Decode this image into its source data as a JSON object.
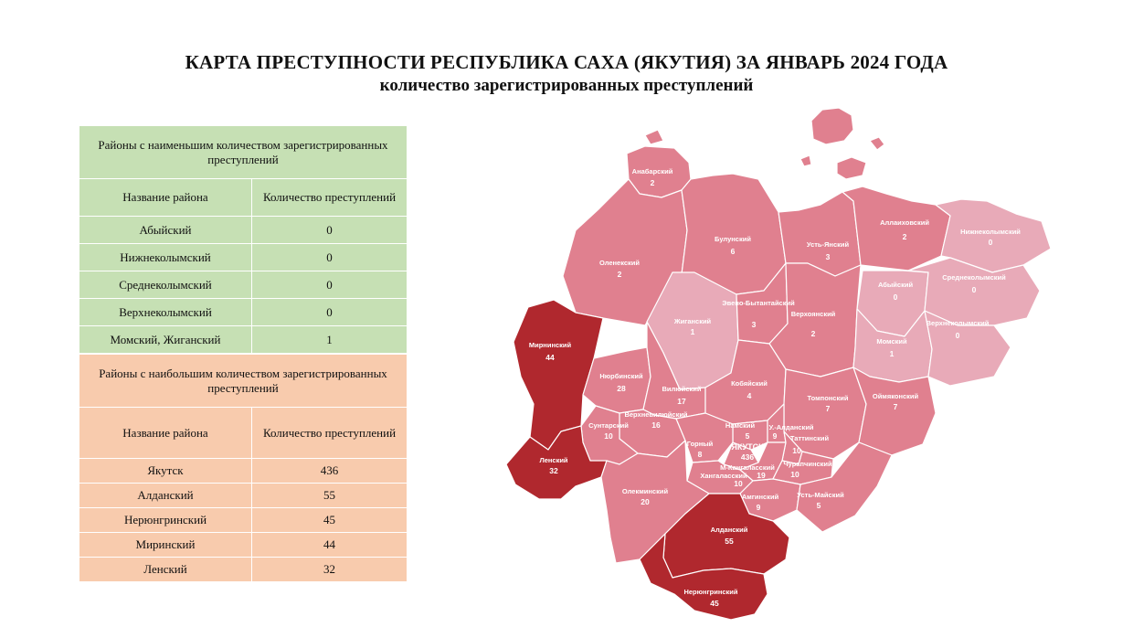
{
  "title": "КАРТА ПРЕСТУПНОСТИ РЕСПУБЛИКА САХА  (ЯКУТИЯ) ЗА ЯНВАРЬ 2024 ГОДА",
  "subtitle": "количество зарегистрированных преступлений",
  "least_table": {
    "heading": "Районы с наименьшим количеством зарегистрированных преступлений",
    "col_name": "Название района",
    "col_count": "Количество преступлений",
    "rows": [
      {
        "name": "Абыйский",
        "count": "0"
      },
      {
        "name": "Нижнеколымский",
        "count": "0"
      },
      {
        "name": "Среднеколымский",
        "count": "0"
      },
      {
        "name": "Верхнеколымский",
        "count": "0"
      },
      {
        "name": "Момский, Жиганский",
        "count": "1"
      }
    ],
    "color": "#c6e0b4"
  },
  "most_table": {
    "heading": "Районы с наибольшим количеством зарегистрированных преступлений",
    "col_name": "Название района",
    "col_count": "Количество преступлений",
    "rows": [
      {
        "name": "Якутск",
        "count": "436"
      },
      {
        "name": "Алданский",
        "count": "55"
      },
      {
        "name": "Нерюнгринский",
        "count": "45"
      },
      {
        "name": "Миринский",
        "count": "44"
      },
      {
        "name": "Ленский",
        "count": "32"
      }
    ],
    "color": "#f8cbad"
  },
  "map": {
    "colors": {
      "low": "#e8aab8",
      "mid": "#e0808f",
      "high": "#b0282e",
      "border": "#ffffff"
    },
    "districts": {
      "anabar": {
        "name": "Анабарский",
        "value": "2"
      },
      "olenek": {
        "name": "Оленекский",
        "value": "2"
      },
      "bulun": {
        "name": "Булунский",
        "value": "6"
      },
      "ustyan": {
        "name": "Усть-Янский",
        "value": "3"
      },
      "allaikh": {
        "name": "Аллаиховский",
        "value": "2"
      },
      "nizhnekol": {
        "name": "Нижнеколымский",
        "value": "0"
      },
      "abyi": {
        "name": "Абыйский",
        "value": "0"
      },
      "srednekol": {
        "name": "Среднеколымский",
        "value": "0"
      },
      "zhigan": {
        "name": "Жиганский",
        "value": "1"
      },
      "eveno": {
        "name": "Эвено-Бытантайский",
        "value": "3"
      },
      "verkhoyan": {
        "name": "Верхоянский",
        "value": "2"
      },
      "momsky": {
        "name": "Момский",
        "value": "1"
      },
      "verkhnekol": {
        "name": "Верхнеколымский",
        "value": "0"
      },
      "mirny": {
        "name": "Мирнинский",
        "value": "44"
      },
      "nyurba": {
        "name": "Нюрбинский",
        "value": "28"
      },
      "vilyuy": {
        "name": "Вилюйский",
        "value": "17"
      },
      "kobyai": {
        "name": "Кобяйский",
        "value": "4"
      },
      "tomponsky": {
        "name": "Томпонский",
        "value": "7"
      },
      "oimyakon": {
        "name": "Оймяконский",
        "value": "7"
      },
      "verkhnevil": {
        "name": "Верхневилюйский",
        "value": "16"
      },
      "suntar": {
        "name": "Сунтарский",
        "value": "10"
      },
      "namsky": {
        "name": "Намский",
        "value": "5"
      },
      "ustaldan": {
        "name": "У.-Алданский",
        "value": "9"
      },
      "gorny": {
        "name": "Горный",
        "value": "8"
      },
      "yakutsk": {
        "name": "ЯКУТСК",
        "value": "436"
      },
      "tatta": {
        "name": "Таттинский",
        "value": "10"
      },
      "mkangalas": {
        "name": "М-Кангаласский",
        "value": "19"
      },
      "khangalas": {
        "name": "Хангаласский",
        "value": "10"
      },
      "churapcha": {
        "name": "Чурапчинский",
        "value": "10"
      },
      "lensky": {
        "name": "Ленский",
        "value": "32"
      },
      "olekminsk": {
        "name": "Олекминский",
        "value": "20"
      },
      "amginsky": {
        "name": "Амгинский",
        "value": "9"
      },
      "ustmaysky": {
        "name": "Усть-Майский",
        "value": "5"
      },
      "aldan": {
        "name": "Алданский",
        "value": "55"
      },
      "neryungri": {
        "name": "Нерюнгринский",
        "value": "45"
      }
    }
  }
}
